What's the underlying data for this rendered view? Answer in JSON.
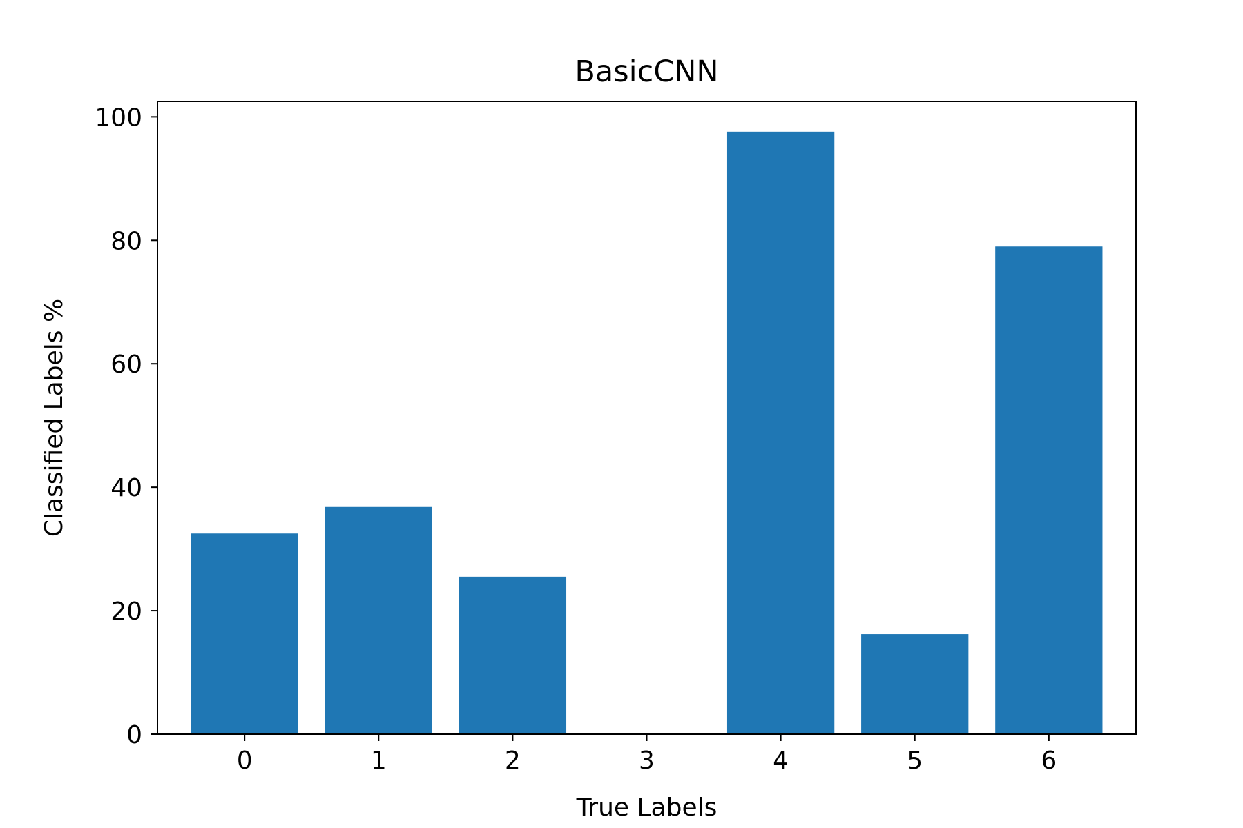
{
  "chart_data": {
    "type": "bar",
    "title": "BasicCNN",
    "xlabel": "True Labels",
    "ylabel": "Classified Labels %",
    "categories": [
      "0",
      "1",
      "2",
      "3",
      "4",
      "5",
      "6"
    ],
    "values": [
      32.5,
      36.8,
      25.5,
      0,
      97.6,
      16.2,
      79.0
    ],
    "ylim": [
      0,
      102.5
    ],
    "yticks": [
      0,
      20,
      40,
      60,
      80,
      100
    ],
    "bar_color": "#1f77b4",
    "grid": false,
    "legend": "none"
  }
}
